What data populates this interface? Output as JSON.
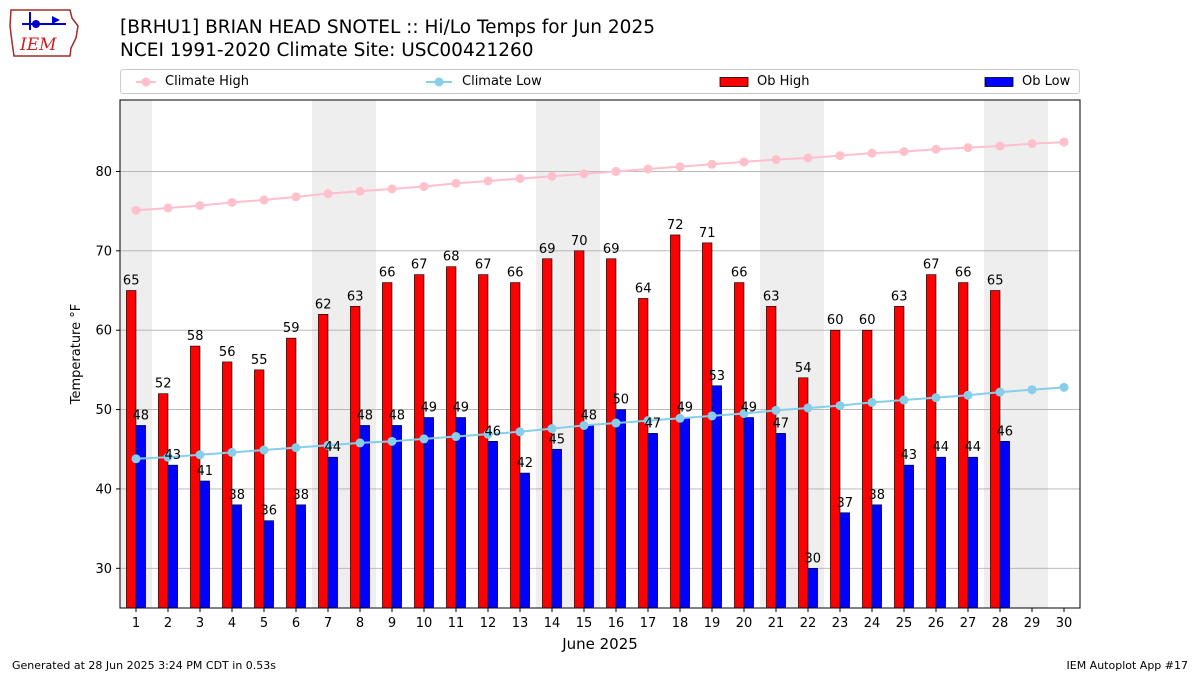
{
  "header": {
    "logo_text": "IEM",
    "title_line1": "[BRHU1] BRIAN HEAD SNOTEL :: Hi/Lo Temps for Jun 2025",
    "title_line2": "NCEI 1991-2020 Climate Site: USC00421260"
  },
  "legend": {
    "climate_high": "Climate High",
    "climate_low": "Climate Low",
    "ob_high": "Ob High",
    "ob_low": "Ob Low"
  },
  "footer": {
    "generated": "Generated at 28 Jun 2025 3:24 PM CDT in 0.53s",
    "app": "IEM Autoplot App #17"
  },
  "colors": {
    "climate_high": "#ffc0cb",
    "climate_low": "#87ceeb",
    "ob_high": "#ff0000",
    "ob_low": "#0000ff",
    "weekend_band": "#eeeeee",
    "grid": "#b0b0b0"
  },
  "chart_data": {
    "type": "bar",
    "xlabel": "June 2025",
    "ylabel": "Temperature °F",
    "xlim": [
      0.5,
      30.5
    ],
    "ylim": [
      25,
      89
    ],
    "yticks": [
      30,
      40,
      50,
      60,
      70,
      80
    ],
    "grid": "y",
    "legend_position": "top",
    "x": [
      1,
      2,
      3,
      4,
      5,
      6,
      7,
      8,
      9,
      10,
      11,
      12,
      13,
      14,
      15,
      16,
      17,
      18,
      19,
      20,
      21,
      22,
      23,
      24,
      25,
      26,
      27,
      28,
      29,
      30
    ],
    "weekend_days": [
      1,
      7,
      8,
      14,
      15,
      21,
      22,
      28,
      29
    ],
    "series": [
      {
        "name": "Climate High",
        "kind": "line",
        "values": [
          75.1,
          75.4,
          75.7,
          76.1,
          76.4,
          76.8,
          77.2,
          77.5,
          77.8,
          78.1,
          78.5,
          78.8,
          79.1,
          79.4,
          79.7,
          80.0,
          80.3,
          80.6,
          80.9,
          81.2,
          81.5,
          81.7,
          82.0,
          82.3,
          82.5,
          82.8,
          83.0,
          83.2,
          83.5,
          83.7
        ]
      },
      {
        "name": "Climate Low",
        "kind": "line",
        "values": [
          43.8,
          44.0,
          44.3,
          44.6,
          44.9,
          45.2,
          45.5,
          45.8,
          46.0,
          46.3,
          46.6,
          46.9,
          47.2,
          47.6,
          48.0,
          48.3,
          48.6,
          48.9,
          49.2,
          49.5,
          49.9,
          50.2,
          50.5,
          50.9,
          51.2,
          51.5,
          51.8,
          52.2,
          52.5,
          52.8
        ]
      },
      {
        "name": "Ob High",
        "kind": "bar",
        "values": [
          65,
          52,
          58,
          56,
          55,
          59,
          62,
          63,
          66,
          67,
          68,
          67,
          66,
          69,
          70,
          69,
          64,
          72,
          71,
          66,
          63,
          54,
          60,
          60,
          63,
          67,
          66,
          65,
          null,
          null
        ]
      },
      {
        "name": "Ob Low",
        "kind": "bar",
        "values": [
          48,
          43,
          41,
          38,
          36,
          38,
          44,
          48,
          48,
          49,
          49,
          46,
          42,
          45,
          48,
          50,
          47,
          49,
          53,
          49,
          47,
          30,
          37,
          38,
          43,
          44,
          44,
          46,
          null,
          null
        ]
      }
    ]
  }
}
